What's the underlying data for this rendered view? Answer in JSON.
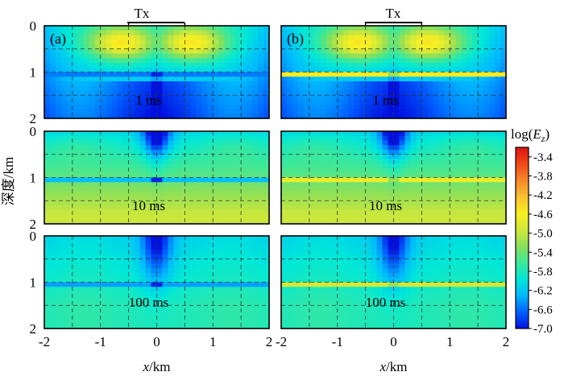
{
  "chart_data": {
    "type": "heatmap",
    "transmitter_label": "Tx",
    "transmitter_extent_km": [
      -0.5,
      0.5
    ],
    "x_axis": {
      "label_italic": "x",
      "label_unit": "/km",
      "range": [
        -2,
        2
      ],
      "ticks": [
        -2,
        -1,
        0,
        1,
        2
      ],
      "tick_labels": [
        "-2",
        "-1",
        "0",
        "1",
        "2"
      ],
      "gridlines": [
        -1.5,
        -1,
        -0.5,
        0,
        0.5,
        1,
        1.5
      ]
    },
    "y_axis": {
      "label": "深度/km",
      "range": [
        0,
        2
      ],
      "ticks": [
        0,
        1,
        2
      ],
      "tick_labels": [
        "0",
        "1",
        "2"
      ],
      "gridlines": [
        0.5,
        1,
        1.5
      ],
      "inverted": true
    },
    "panels": [
      {
        "id": "a",
        "label": "(a)",
        "column": 0,
        "row": 0,
        "time": "1 ms",
        "layer_depth_km": 1.05,
        "layer_type": "resistive"
      },
      {
        "id": "b",
        "label": "(b)",
        "column": 1,
        "row": 0,
        "time": "1 ms",
        "layer_depth_km": 1.05,
        "layer_type": "conductive"
      },
      {
        "id": "a2",
        "label": "",
        "column": 0,
        "row": 1,
        "time": "10 ms",
        "layer_depth_km": 1.05,
        "layer_type": "resistive"
      },
      {
        "id": "b2",
        "label": "",
        "column": 1,
        "row": 1,
        "time": "10 ms",
        "layer_depth_km": 1.05,
        "layer_type": "conductive"
      },
      {
        "id": "a3",
        "label": "",
        "column": 0,
        "row": 2,
        "time": "100 ms",
        "layer_depth_km": 1.05,
        "layer_type": "resistive"
      },
      {
        "id": "b3",
        "label": "",
        "column": 1,
        "row": 2,
        "time": "100 ms",
        "layer_depth_km": 1.05,
        "layer_type": "conductive"
      }
    ],
    "colorbar": {
      "title_prefix": "log(",
      "title_var": "E",
      "title_sub": "z",
      "title_suffix": ")",
      "min": -7.0,
      "max": -3.2,
      "ticks": [
        -3.4,
        -3.8,
        -4.2,
        -4.6,
        -5.0,
        -5.4,
        -5.8,
        -6.2,
        -6.6,
        -7.0
      ],
      "tick_labels": [
        "-3.4",
        "-3.8",
        "-4.2",
        "-4.6",
        "-5.0",
        "-5.4",
        "-5.8",
        "-6.2",
        "-6.6",
        "-7.0"
      ],
      "colors": [
        "#0010e0",
        "#0060ff",
        "#00b8ff",
        "#00e8d8",
        "#3ce89a",
        "#8ae05a",
        "#d0e83a",
        "#f8f020",
        "#f8c030",
        "#f88828",
        "#f04818",
        "#e01010"
      ]
    }
  }
}
